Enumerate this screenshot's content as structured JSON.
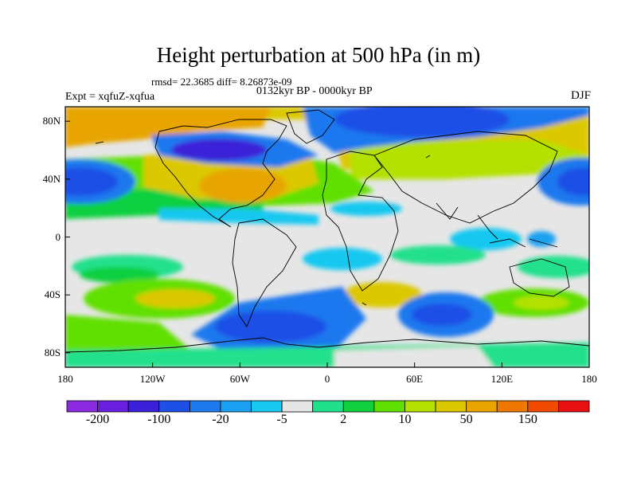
{
  "title": "Height perturbation at 500 hPa (in m)",
  "stats": "rmsd= 22.3685 diff= 8.26873e-09",
  "period": "0132kyr BP - 0000kyr BP",
  "experiment": "Expt = xqfuZ-xqfua",
  "season": "DJF",
  "map": {
    "lon_range": [
      -180,
      180
    ],
    "lat_range": [
      -90,
      90
    ],
    "y_ticks": [
      {
        "label": "80N",
        "lat": 80
      },
      {
        "label": "40N",
        "lat": 40
      },
      {
        "label": "0",
        "lat": 0
      },
      {
        "label": "40S",
        "lat": -40
      },
      {
        "label": "80S",
        "lat": -80
      }
    ],
    "x_ticks": [
      {
        "label": "180",
        "lon": -180
      },
      {
        "label": "120W",
        "lon": -120
      },
      {
        "label": "60W",
        "lon": -60
      },
      {
        "label": "0",
        "lon": 0
      },
      {
        "label": "60E",
        "lon": 60
      },
      {
        "label": "120E",
        "lon": 120
      },
      {
        "label": "180",
        "lon": 180
      }
    ]
  },
  "colorbar": {
    "colors": [
      "#8a2be2",
      "#6a1fe0",
      "#3a20d8",
      "#1e4fe6",
      "#1e78ee",
      "#1aa0f0",
      "#18c8f0",
      "#e6e6e6",
      "#20e08c",
      "#10d040",
      "#60e000",
      "#b4e100",
      "#dcc800",
      "#e8a400",
      "#f07800",
      "#f04a00",
      "#e81010"
    ],
    "labels": [
      {
        "text": "-200",
        "index": 1
      },
      {
        "text": "-100",
        "index": 3
      },
      {
        "text": "-20",
        "index": 5
      },
      {
        "text": "-5",
        "index": 7
      },
      {
        "text": "2",
        "index": 9
      },
      {
        "text": "10",
        "index": 11
      },
      {
        "text": "50",
        "index": 13
      },
      {
        "text": "150",
        "index": 15
      }
    ]
  }
}
